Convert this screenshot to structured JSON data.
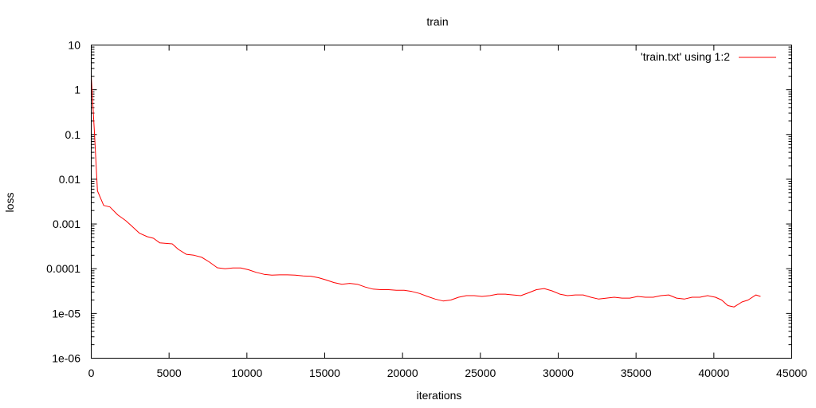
{
  "chart_data": {
    "type": "line",
    "title": "train",
    "xlabel": "iterations",
    "ylabel": "loss",
    "xlim": [
      0,
      45000
    ],
    "ylim": [
      1e-06,
      10
    ],
    "y_scale": "log",
    "grid": false,
    "legend_position": "top-right",
    "x_ticks": [
      0,
      5000,
      10000,
      15000,
      20000,
      25000,
      30000,
      35000,
      40000,
      45000
    ],
    "x_tick_labels": [
      "0",
      "5000",
      "10000",
      "15000",
      "20000",
      "25000",
      "30000",
      "35000",
      "40000",
      "45000"
    ],
    "y_ticks": [
      1e-06,
      1e-05,
      0.0001,
      0.001,
      0.01,
      0.1,
      1,
      10
    ],
    "y_tick_labels": [
      "1e-06",
      "1e-05",
      "0.0001",
      "0.001",
      "0.01",
      "0.1",
      "1",
      "10"
    ],
    "series": [
      {
        "name": "'train.txt' using 1:2",
        "color": "#ff0000",
        "x": [
          0,
          200,
          400,
          800,
          1200,
          1700,
          2200,
          2600,
          3100,
          3600,
          4000,
          4400,
          5200,
          5600,
          6100,
          6600,
          7100,
          7600,
          8100,
          8600,
          9100,
          9600,
          10100,
          10600,
          11100,
          11600,
          12100,
          12600,
          13100,
          13600,
          14100,
          14600,
          15100,
          15600,
          16100,
          16600,
          17100,
          17600,
          18100,
          18600,
          19100,
          19600,
          20100,
          20600,
          21100,
          21600,
          22100,
          22600,
          23100,
          23600,
          24100,
          24600,
          25100,
          25600,
          26100,
          26600,
          27100,
          27600,
          28100,
          28600,
          29100,
          29600,
          30100,
          30600,
          31100,
          31600,
          32100,
          32600,
          33100,
          33600,
          34100,
          34600,
          35100,
          35600,
          36100,
          36600,
          37100,
          37600,
          38100,
          38600,
          39100,
          39600,
          40100,
          40500,
          40900,
          41300,
          41800,
          42200,
          42700,
          43000
        ],
        "y": [
          2.0,
          0.12,
          0.0055,
          0.0026,
          0.0024,
          0.0016,
          0.0012,
          0.0009,
          0.00062,
          0.00052,
          0.00048,
          0.00038,
          0.00036,
          0.00027,
          0.00021,
          0.0002,
          0.00018,
          0.00014,
          0.000105,
          0.0001,
          0.000104,
          0.000104,
          9.5e-05,
          8.3e-05,
          7.5e-05,
          7.2e-05,
          7.3e-05,
          7.3e-05,
          7.2e-05,
          6.9e-05,
          6.8e-05,
          6.3e-05,
          5.6e-05,
          4.9e-05,
          4.5e-05,
          4.7e-05,
          4.5e-05,
          3.9e-05,
          3.5e-05,
          3.4e-05,
          3.4e-05,
          3.3e-05,
          3.3e-05,
          3.1e-05,
          2.8e-05,
          2.4e-05,
          2.1e-05,
          1.9e-05,
          2e-05,
          2.3e-05,
          2.5e-05,
          2.5e-05,
          2.4e-05,
          2.5e-05,
          2.7e-05,
          2.7e-05,
          2.6e-05,
          2.5e-05,
          2.9e-05,
          3.4e-05,
          3.6e-05,
          3.2e-05,
          2.7e-05,
          2.5e-05,
          2.6e-05,
          2.6e-05,
          2.3e-05,
          2.1e-05,
          2.2e-05,
          2.3e-05,
          2.2e-05,
          2.2e-05,
          2.4e-05,
          2.3e-05,
          2.3e-05,
          2.5e-05,
          2.6e-05,
          2.2e-05,
          2.1e-05,
          2.3e-05,
          2.3e-05,
          2.5e-05,
          2.3e-05,
          2e-05,
          1.5e-05,
          1.4e-05,
          1.8e-05,
          2e-05,
          2.6e-05,
          2.4e-05
        ]
      }
    ]
  }
}
